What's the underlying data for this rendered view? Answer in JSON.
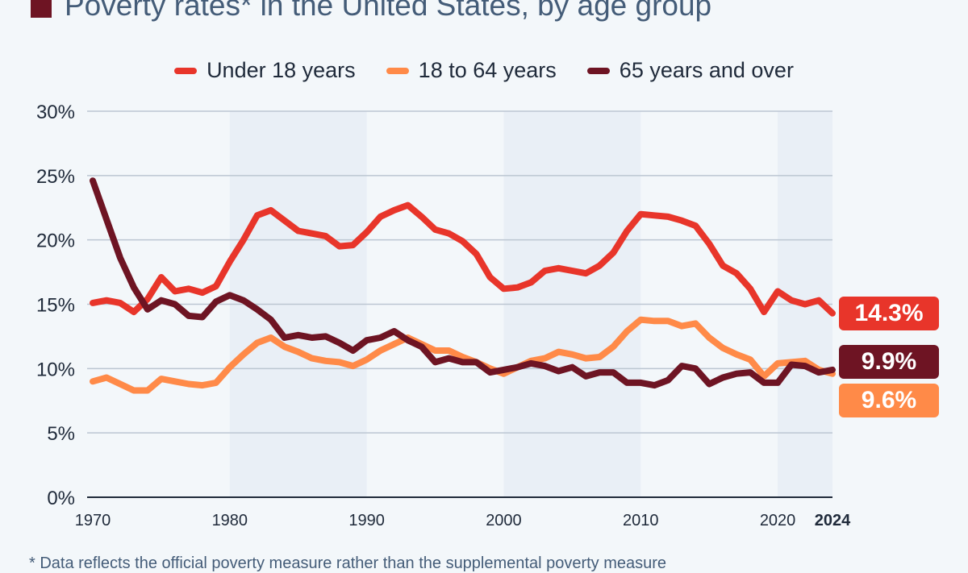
{
  "title": "Poverty rates* in the United States, by age group",
  "footnote": "* Data reflects the official poverty measure rather than the supplemental poverty measure",
  "chart_data": {
    "type": "line",
    "title": "Poverty rates* in the United States, by age group",
    "xlabel": "",
    "ylabel": "",
    "xlim": [
      1970,
      2024
    ],
    "ylim": [
      0,
      30
    ],
    "y_ticks": [
      "0%",
      "5%",
      "10%",
      "15%",
      "20%",
      "25%",
      "30%"
    ],
    "x_ticks": [
      "1970",
      "1980",
      "1990",
      "2000",
      "2010",
      "2020",
      "2024"
    ],
    "grid": true,
    "legend_position": "top",
    "shaded_decades": [
      [
        1980,
        1990
      ],
      [
        2000,
        2010
      ],
      [
        2020,
        2024
      ]
    ],
    "x_start": 1970,
    "series": [
      {
        "name": "Under 18 years",
        "color": "#e8352a",
        "end_label": "14.3%",
        "values": [
          15.1,
          15.3,
          15.1,
          14.4,
          15.4,
          17.1,
          16.0,
          16.2,
          15.9,
          16.4,
          18.3,
          20.0,
          21.9,
          22.3,
          21.5,
          20.7,
          20.5,
          20.3,
          19.5,
          19.6,
          20.6,
          21.8,
          22.3,
          22.7,
          21.8,
          20.8,
          20.5,
          19.9,
          18.9,
          17.1,
          16.2,
          16.3,
          16.7,
          17.6,
          17.8,
          17.6,
          17.4,
          18.0,
          19.0,
          20.7,
          22.0,
          21.9,
          21.8,
          21.5,
          21.1,
          19.7,
          18.0,
          17.4,
          16.2,
          14.4,
          16.0,
          15.3,
          15.0,
          15.3,
          14.3
        ]
      },
      {
        "name": "18 to 64 years",
        "color": "#ff8a48",
        "end_label": "9.6%",
        "values": [
          9.0,
          9.3,
          8.8,
          8.3,
          8.3,
          9.2,
          9.0,
          8.8,
          8.7,
          8.9,
          10.1,
          11.1,
          12.0,
          12.4,
          11.7,
          11.3,
          10.8,
          10.6,
          10.5,
          10.2,
          10.7,
          11.4,
          11.9,
          12.4,
          11.9,
          11.4,
          11.4,
          10.9,
          10.5,
          10.0,
          9.6,
          10.1,
          10.6,
          10.8,
          11.3,
          11.1,
          10.8,
          10.9,
          11.7,
          12.9,
          13.8,
          13.7,
          13.7,
          13.3,
          13.5,
          12.4,
          11.6,
          11.1,
          10.7,
          9.4,
          10.4,
          10.5,
          10.6,
          9.9,
          9.6
        ]
      },
      {
        "name": "65 years and over",
        "color": "#6e1423",
        "end_label": "9.9%",
        "values": [
          24.6,
          21.6,
          18.6,
          16.3,
          14.6,
          15.3,
          15.0,
          14.1,
          14.0,
          15.2,
          15.7,
          15.3,
          14.6,
          13.8,
          12.4,
          12.6,
          12.4,
          12.5,
          12.0,
          11.4,
          12.2,
          12.4,
          12.9,
          12.2,
          11.7,
          10.5,
          10.8,
          10.5,
          10.5,
          9.7,
          9.9,
          10.1,
          10.4,
          10.2,
          9.8,
          10.1,
          9.4,
          9.7,
          9.7,
          8.9,
          8.9,
          8.7,
          9.1,
          10.2,
          10.0,
          8.8,
          9.3,
          9.6,
          9.7,
          8.9,
          8.9,
          10.3,
          10.2,
          9.7,
          9.9
        ]
      }
    ]
  }
}
